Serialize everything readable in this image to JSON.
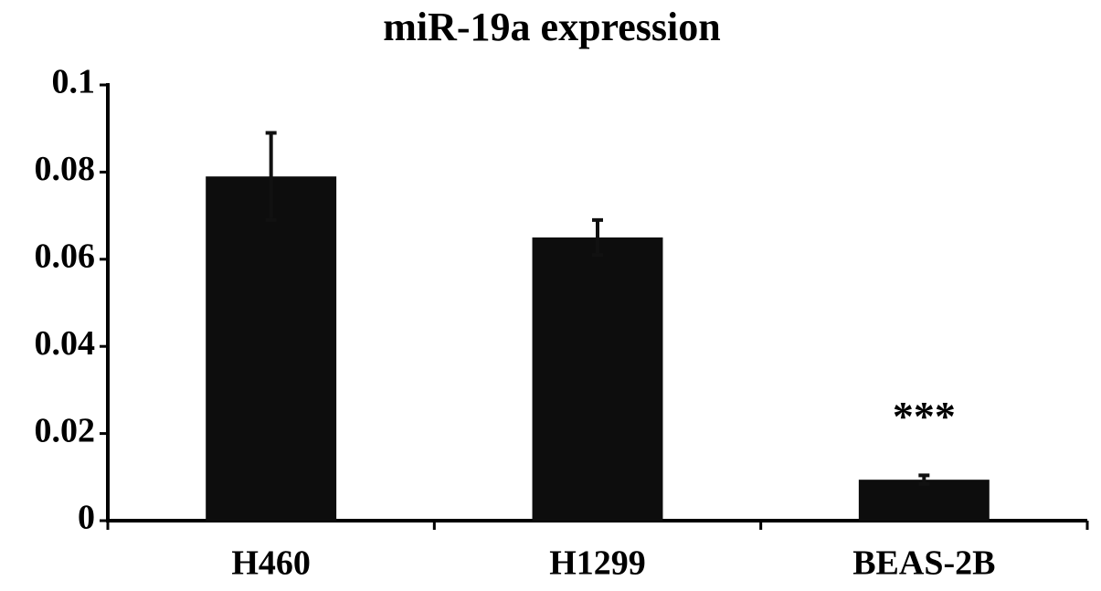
{
  "chart_data": {
    "type": "bar",
    "title": "miR-19a expression",
    "categories": [
      "H460",
      "H1299",
      "BEAS-2B"
    ],
    "values": [
      0.079,
      0.065,
      0.0094
    ],
    "errors": [
      0.01,
      0.004,
      0.001
    ],
    "color": "#0d0d0d",
    "ylim": [
      0,
      0.1
    ],
    "yticks": [
      0,
      0.02,
      0.04,
      0.06,
      0.08,
      0.1
    ],
    "grid": false,
    "annotations": [
      {
        "text": "***",
        "category": "BEAS-2B"
      }
    ]
  }
}
